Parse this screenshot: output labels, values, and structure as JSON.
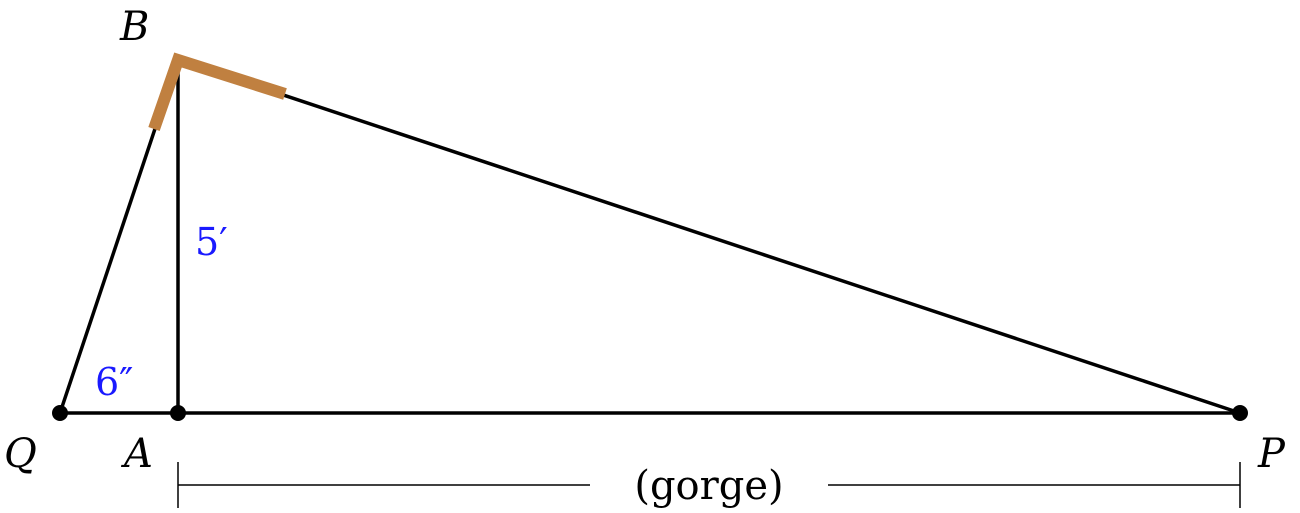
{
  "points": {
    "B": "B",
    "Q": "Q",
    "A": "A",
    "P": "P"
  },
  "measurements": {
    "height": "5′",
    "offset": "6″"
  },
  "span_label": "(gorge)",
  "colors": {
    "lines": "#000000",
    "measurements": "#1a1aff",
    "square_tool": "#c08040"
  }
}
